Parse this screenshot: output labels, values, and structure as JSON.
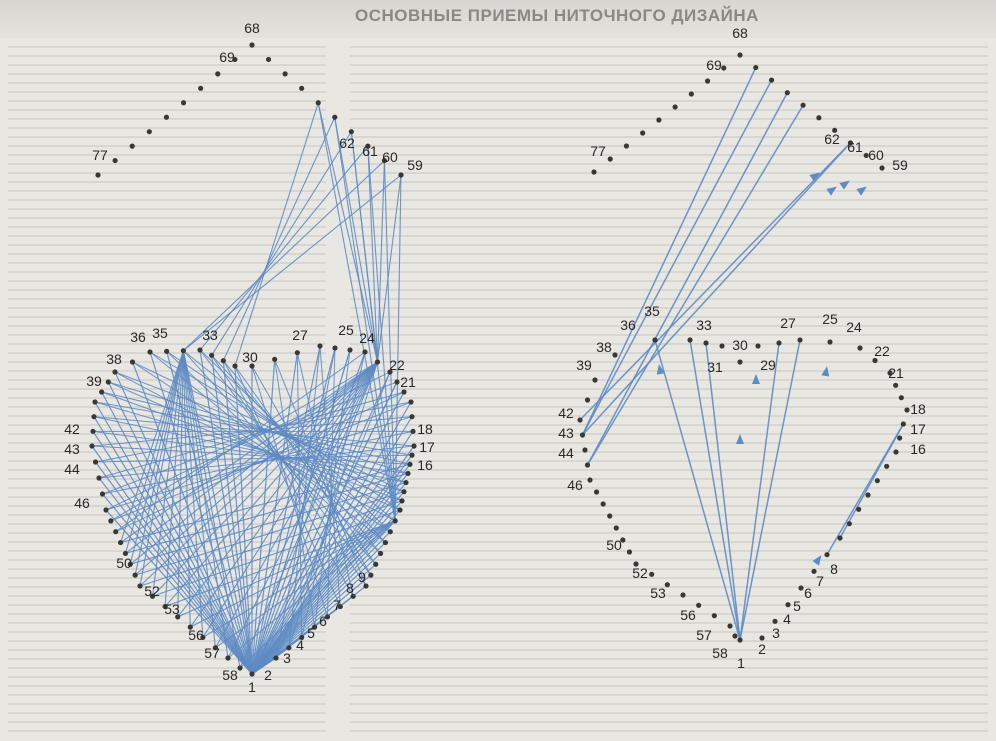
{
  "header": {
    "title": "ОСНОВНЫЕ ПРИЕМЫ НИТОЧНОГО ДИЗАЙНА"
  },
  "colors": {
    "thread": "#5d8bc4",
    "dot": "#3a3835",
    "label": "#2a2826",
    "background": "#e9e7e2",
    "panel": "#f2f1ee"
  },
  "figure_left": {
    "labels": [
      "1",
      "2",
      "3",
      "4",
      "5",
      "6",
      "7",
      "8",
      "9",
      "16",
      "17",
      "18",
      "21",
      "22",
      "24",
      "25",
      "27",
      "30",
      "33",
      "35",
      "36",
      "38",
      "39",
      "42",
      "43",
      "44",
      "46",
      "50",
      "52",
      "53",
      "56",
      "57",
      "58",
      "59",
      "60",
      "61",
      "62",
      "68",
      "69",
      "77"
    ]
  },
  "figure_right": {
    "labels": [
      "1",
      "2",
      "3",
      "4",
      "5",
      "6",
      "7",
      "8",
      "16",
      "17",
      "18",
      "21",
      "22",
      "24",
      "25",
      "27",
      "29",
      "30",
      "31",
      "33",
      "35",
      "36",
      "38",
      "39",
      "42",
      "43",
      "44",
      "46",
      "50",
      "52",
      "53",
      "56",
      "57",
      "58",
      "59",
      "60",
      "61",
      "62",
      "68",
      "69",
      "77"
    ]
  }
}
